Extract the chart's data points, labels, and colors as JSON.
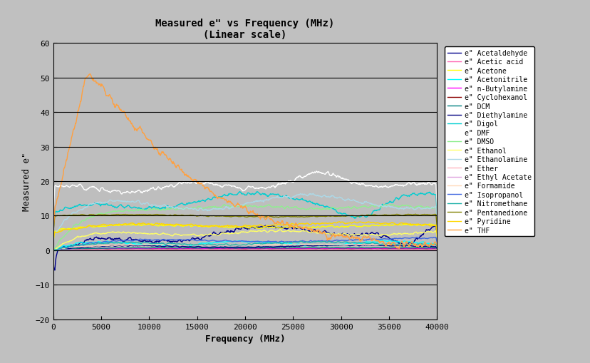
{
  "title": "Measured e\" vs Frequency (MHz)\n(Linear scale)",
  "xlabel": "Frequency (MHz)",
  "ylabel": "Measured e\"",
  "xlim": [
    0,
    40000
  ],
  "ylim": [
    -20,
    60
  ],
  "yticks": [
    -20,
    -10,
    0,
    10,
    20,
    30,
    40,
    50,
    60
  ],
  "xticks": [
    0,
    5000,
    10000,
    15000,
    20000,
    25000,
    30000,
    35000,
    40000
  ],
  "bg_color": "#c0c0c0",
  "plot_bg_color": "#bebebe",
  "series": [
    {
      "label": "e\" Acetaldehyde",
      "color": "#00008B",
      "lw": 1.0
    },
    {
      "label": "e\" Acetic acid",
      "color": "#FF69B4",
      "lw": 1.0
    },
    {
      "label": "e\" Acetone",
      "color": "#FFFF00",
      "lw": 1.0
    },
    {
      "label": "e\" Acetonitrile",
      "color": "#00FFFF",
      "lw": 1.0
    },
    {
      "label": "e\" n-Butylamine",
      "color": "#FF00FF",
      "lw": 1.0
    },
    {
      "label": "e\" Cyclohexanol",
      "color": "#8B0000",
      "lw": 1.0
    },
    {
      "label": "e\" DCM",
      "color": "#008080",
      "lw": 1.0
    },
    {
      "label": "e\" Diethylamine",
      "color": "#000080",
      "lw": 1.0
    },
    {
      "label": "e\" Digol",
      "color": "#00CED1",
      "lw": 1.0
    },
    {
      "label": "e\" DMF",
      "color": "#FFFFFF",
      "lw": 1.0
    },
    {
      "label": "e\" DMSO",
      "color": "#90EE90",
      "lw": 1.0
    },
    {
      "label": "e\" Ethanol",
      "color": "#FFFF66",
      "lw": 1.0
    },
    {
      "label": "e\" Ethanolamine",
      "color": "#ADD8E6",
      "lw": 1.0
    },
    {
      "label": "e\" Ether",
      "color": "#FFB6C1",
      "lw": 1.0
    },
    {
      "label": "e\" Ethyl Acetate",
      "color": "#DDA0DD",
      "lw": 1.0
    },
    {
      "label": "e\" Formamide",
      "color": "#FFDAB9",
      "lw": 1.0
    },
    {
      "label": "e\" Isopropanol",
      "color": "#4169E1",
      "lw": 1.0
    },
    {
      "label": "e\" Nitromethane",
      "color": "#20B2AA",
      "lw": 1.0
    },
    {
      "label": "e\" Pentanedione",
      "color": "#808000",
      "lw": 1.0
    },
    {
      "label": "e\" Pyridine",
      "color": "#FFD700",
      "lw": 1.0
    },
    {
      "label": "e\" THF",
      "color": "#FFA040",
      "lw": 1.0
    }
  ]
}
